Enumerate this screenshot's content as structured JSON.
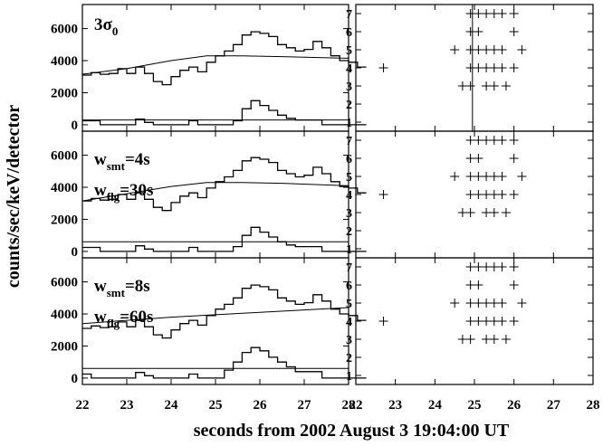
{
  "chart_data": {
    "type": "line",
    "xlabel": "seconds from 2002 August 3 19:04:00 UT",
    "ylabel": "counts/sec/keV/detector",
    "x_ticks": [
      22,
      23,
      24,
      25,
      26,
      27,
      28
    ],
    "xlim": [
      22,
      28
    ],
    "rows": [
      {
        "label": "3σ",
        "label_sub": "0",
        "light_curve": {
          "x_step": 0.2,
          "x_start": 22.0,
          "values": [
            3100,
            3250,
            3150,
            3200,
            3500,
            3200,
            3600,
            3200,
            2700,
            2500,
            3000,
            3400,
            3600,
            3300,
            3900,
            4300,
            4600,
            5000,
            5600,
            5800,
            5700,
            5500,
            5000,
            4800,
            4600,
            4700,
            5200,
            4800,
            4300,
            4000,
            3900,
            3600
          ]
        },
        "background_curve": {
          "x": [
            22,
            23,
            24,
            24.8,
            25.6,
            26.5,
            28
          ],
          "y": [
            3150,
            3500,
            4000,
            4300,
            4300,
            4250,
            4150
          ]
        },
        "residual": {
          "x_step": 0.2,
          "x_start": 22.0,
          "values": [
            250,
            250,
            0,
            0,
            0,
            0,
            350,
            150,
            0,
            0,
            0,
            0,
            250,
            0,
            0,
            0,
            0,
            250,
            1000,
            1500,
            1200,
            900,
            600,
            400,
            300,
            300,
            300,
            0,
            0,
            0,
            0,
            0
          ]
        },
        "threshold": 300,
        "ylim": [
          -400,
          7500
        ],
        "y_ticks": [
          0,
          2000,
          4000,
          6000
        ],
        "detections": {
          "y_ticks": [
            1,
            2,
            3,
            4,
            5,
            6,
            7
          ],
          "ylim": [
            0.5,
            7.5
          ],
          "points": [
            [
              22.7,
              4
            ],
            [
              24.5,
              5
            ],
            [
              24.9,
              5
            ],
            [
              25.1,
              5
            ],
            [
              25.3,
              5
            ],
            [
              25.5,
              5
            ],
            [
              25.7,
              5
            ],
            [
              26.2,
              5
            ],
            [
              24.9,
              7
            ],
            [
              25.1,
              7
            ],
            [
              25.3,
              7
            ],
            [
              25.5,
              7
            ],
            [
              25.7,
              7
            ],
            [
              26.0,
              7
            ],
            [
              24.9,
              6
            ],
            [
              25.1,
              6
            ],
            [
              26.0,
              6
            ],
            [
              24.9,
              4
            ],
            [
              25.1,
              4
            ],
            [
              25.3,
              4
            ],
            [
              25.5,
              4
            ],
            [
              25.7,
              4
            ],
            [
              26.0,
              4
            ],
            [
              24.7,
              3
            ],
            [
              24.9,
              3
            ],
            [
              25.3,
              3
            ],
            [
              25.5,
              3
            ],
            [
              25.8,
              3
            ]
          ],
          "vline": 24.95
        }
      },
      {
        "label_lines": [
          {
            "var": "w",
            "sub": "smt",
            "value": "=4s"
          },
          {
            "var": "w",
            "sub": "flg",
            "value": "=30s"
          }
        ],
        "light_curve": {
          "x_step": 0.2,
          "x_start": 22.0,
          "values": [
            3150,
            3300,
            3200,
            3250,
            3550,
            3250,
            3650,
            3250,
            2750,
            2550,
            3050,
            3450,
            3650,
            3350,
            3950,
            4350,
            4650,
            5050,
            5650,
            5850,
            5750,
            5550,
            5050,
            4850,
            4650,
            4750,
            5250,
            4850,
            4350,
            4050,
            3950,
            3650
          ]
        },
        "background_curve": {
          "x": [
            22,
            23,
            24,
            24.8,
            25.6,
            26.5,
            28
          ],
          "y": [
            3150,
            3600,
            4050,
            4300,
            4300,
            4250,
            4100
          ]
        },
        "residual": {
          "x_step": 0.2,
          "x_start": 22.0,
          "values": [
            250,
            250,
            0,
            0,
            0,
            0,
            350,
            150,
            0,
            0,
            0,
            0,
            250,
            0,
            0,
            0,
            0,
            300,
            1000,
            1500,
            1200,
            900,
            600,
            400,
            300,
            300,
            300,
            0,
            0,
            0,
            0,
            0
          ]
        },
        "threshold": 600,
        "ylim": [
          -400,
          7500
        ],
        "y_ticks": [
          0,
          2000,
          4000,
          6000
        ],
        "detections": {
          "y_ticks": [
            1,
            2,
            3,
            4,
            5,
            6,
            7
          ],
          "ylim": [
            0.5,
            7.5
          ],
          "points": [
            [
              22.7,
              4
            ],
            [
              24.5,
              5
            ],
            [
              24.9,
              5
            ],
            [
              25.1,
              5
            ],
            [
              25.3,
              5
            ],
            [
              25.5,
              5
            ],
            [
              25.7,
              5
            ],
            [
              26.2,
              5
            ],
            [
              24.9,
              7
            ],
            [
              25.1,
              7
            ],
            [
              25.3,
              7
            ],
            [
              25.5,
              7
            ],
            [
              25.7,
              7
            ],
            [
              26.0,
              7
            ],
            [
              24.9,
              6
            ],
            [
              25.1,
              6
            ],
            [
              26.0,
              6
            ],
            [
              24.9,
              4
            ],
            [
              25.1,
              4
            ],
            [
              25.3,
              4
            ],
            [
              25.5,
              4
            ],
            [
              25.7,
              4
            ],
            [
              26.0,
              4
            ],
            [
              24.7,
              3
            ],
            [
              24.9,
              3
            ],
            [
              25.3,
              3
            ],
            [
              25.5,
              3
            ],
            [
              25.8,
              3
            ]
          ]
        }
      },
      {
        "label_lines": [
          {
            "var": "w",
            "sub": "smt",
            "value": "=8s"
          },
          {
            "var": "w",
            "sub": "flg",
            "value": "=60s"
          }
        ],
        "light_curve": {
          "x_step": 0.2,
          "x_start": 22.0,
          "values": [
            3100,
            3250,
            3150,
            3200,
            3500,
            3200,
            3600,
            3200,
            2700,
            2500,
            3000,
            3400,
            3600,
            3300,
            3900,
            4300,
            4600,
            5000,
            5600,
            5800,
            5700,
            5500,
            5000,
            4800,
            4600,
            4700,
            5200,
            4800,
            4300,
            4000,
            3900,
            3600
          ]
        },
        "background_curve": {
          "x": [
            22,
            23,
            24,
            25,
            26,
            27,
            28
          ],
          "y": [
            3400,
            3600,
            3800,
            3950,
            4100,
            4250,
            4400
          ]
        },
        "residual": {
          "x_step": 0.2,
          "x_start": 22.0,
          "values": [
            250,
            0,
            0,
            0,
            0,
            0,
            350,
            150,
            0,
            0,
            0,
            0,
            250,
            0,
            0,
            0,
            500,
            1000,
            1600,
            1900,
            1700,
            1300,
            1000,
            700,
            400,
            400,
            400,
            0,
            0,
            0,
            0,
            0
          ]
        },
        "threshold": 600,
        "ylim": [
          -400,
          7500
        ],
        "y_ticks": [
          0,
          2000,
          4000,
          6000
        ],
        "detections": {
          "y_ticks": [
            1,
            2,
            3,
            4,
            5,
            6,
            7
          ],
          "ylim": [
            0.5,
            7.5
          ],
          "points": [
            [
              22.7,
              4
            ],
            [
              24.5,
              5
            ],
            [
              24.9,
              5
            ],
            [
              25.1,
              5
            ],
            [
              25.3,
              5
            ],
            [
              25.5,
              5
            ],
            [
              25.7,
              5
            ],
            [
              26.2,
              5
            ],
            [
              24.9,
              7
            ],
            [
              25.1,
              7
            ],
            [
              25.3,
              7
            ],
            [
              25.5,
              7
            ],
            [
              25.7,
              7
            ],
            [
              26.0,
              7
            ],
            [
              24.9,
              6
            ],
            [
              25.1,
              6
            ],
            [
              26.0,
              6
            ],
            [
              24.9,
              4
            ],
            [
              25.1,
              4
            ],
            [
              25.3,
              4
            ],
            [
              25.5,
              4
            ],
            [
              25.7,
              4
            ],
            [
              26.0,
              4
            ],
            [
              24.7,
              3
            ],
            [
              24.9,
              3
            ],
            [
              25.3,
              3
            ],
            [
              25.5,
              3
            ],
            [
              25.8,
              3
            ]
          ]
        }
      }
    ]
  }
}
